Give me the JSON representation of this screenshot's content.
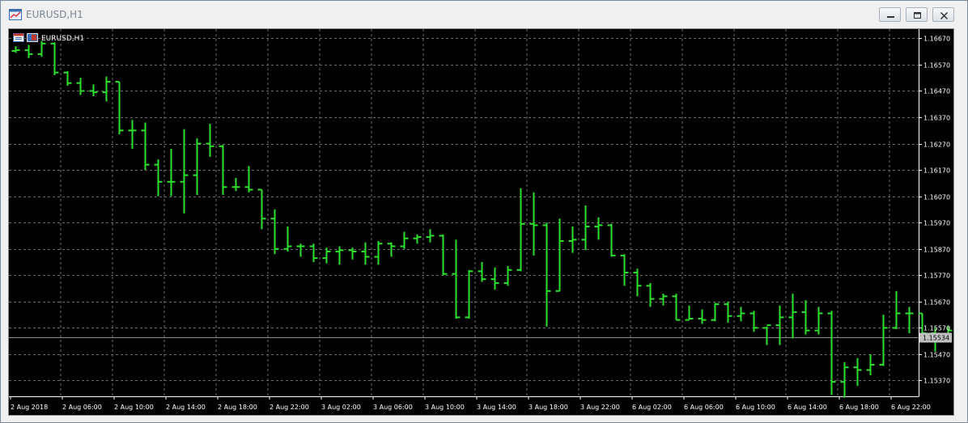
{
  "window": {
    "title": "EURUSD,H1",
    "minimize_icon": "minimize-icon",
    "restore_icon": "restore-icon",
    "close_icon": "close-icon"
  },
  "chart_header": {
    "symbol_label": "EURUSD,H1",
    "icon": "chart-symbol-icon"
  },
  "colors": {
    "background": "#000000",
    "bars": "#2ee02e",
    "grid": "#6b6b6b",
    "axis_text": "#ffffff",
    "current_price_line": "#8c8c8c",
    "current_price_box": "#c0c0c0"
  },
  "chart_data": {
    "type": "ohlc",
    "symbol": "EURUSD",
    "timeframe": "H1",
    "ylim": [
      1.1531,
      1.16705
    ],
    "y_ticks": [
      "1.16670",
      "1.16570",
      "1.16470",
      "1.16370",
      "1.16270",
      "1.16170",
      "1.16070",
      "1.15970",
      "1.15870",
      "1.15770",
      "1.15670",
      "1.15570",
      "1.15470",
      "1.15370"
    ],
    "x_ticks": [
      {
        "bar": 0,
        "label": "2 Aug 2018"
      },
      {
        "bar": 4,
        "label": "2 Aug 06:00"
      },
      {
        "bar": 8,
        "label": "2 Aug 10:00"
      },
      {
        "bar": 12,
        "label": "2 Aug 14:00"
      },
      {
        "bar": 16,
        "label": "2 Aug 18:00"
      },
      {
        "bar": 20,
        "label": "2 Aug 22:00"
      },
      {
        "bar": 24,
        "label": "3 Aug 02:00"
      },
      {
        "bar": 28,
        "label": "3 Aug 06:00"
      },
      {
        "bar": 32,
        "label": "3 Aug 10:00"
      },
      {
        "bar": 36,
        "label": "3 Aug 14:00"
      },
      {
        "bar": 40,
        "label": "3 Aug 18:00"
      },
      {
        "bar": 44,
        "label": "3 Aug 22:00"
      },
      {
        "bar": 48,
        "label": "6 Aug 02:00"
      },
      {
        "bar": 52,
        "label": "6 Aug 06:00"
      },
      {
        "bar": 56,
        "label": "6 Aug 10:00"
      },
      {
        "bar": 60,
        "label": "6 Aug 14:00"
      },
      {
        "bar": 64,
        "label": "6 Aug 18:00"
      },
      {
        "bar": 68,
        "label": "6 Aug 22:00"
      }
    ],
    "current_price": "1.15534",
    "current_price_value": 1.15534,
    "ohlc": [
      [
        1.16622,
        1.1664,
        1.16615,
        1.16625
      ],
      [
        1.16625,
        1.16645,
        1.16595,
        1.1661
      ],
      [
        1.1661,
        1.1666,
        1.166,
        1.1665
      ],
      [
        1.1665,
        1.16655,
        1.1653,
        1.1654
      ],
      [
        1.1654,
        1.16545,
        1.1649,
        1.165
      ],
      [
        1.165,
        1.1652,
        1.16455,
        1.1647
      ],
      [
        1.1647,
        1.16495,
        1.1645,
        1.16465
      ],
      [
        1.16465,
        1.16525,
        1.1643,
        1.16505
      ],
      [
        1.16505,
        1.16505,
        1.16305,
        1.1632
      ],
      [
        1.1632,
        1.1636,
        1.1625,
        1.1632
      ],
      [
        1.1632,
        1.1635,
        1.1617,
        1.1619
      ],
      [
        1.1619,
        1.1621,
        1.1607,
        1.16125
      ],
      [
        1.16125,
        1.1625,
        1.1607,
        1.16125
      ],
      [
        1.16125,
        1.16325,
        1.16005,
        1.1615
      ],
      [
        1.1615,
        1.1629,
        1.16075,
        1.1627
      ],
      [
        1.1627,
        1.16345,
        1.1622,
        1.1626
      ],
      [
        1.1626,
        1.16265,
        1.16075,
        1.16105
      ],
      [
        1.16105,
        1.1614,
        1.1609,
        1.16105
      ],
      [
        1.16105,
        1.16185,
        1.16085,
        1.16095
      ],
      [
        1.16095,
        1.16095,
        1.15945,
        1.15985
      ],
      [
        1.15985,
        1.1602,
        1.1585,
        1.1587
      ],
      [
        1.1587,
        1.15955,
        1.1586,
        1.1588
      ],
      [
        1.1588,
        1.1589,
        1.1584,
        1.1588
      ],
      [
        1.1588,
        1.1589,
        1.1582,
        1.15835
      ],
      [
        1.15835,
        1.15875,
        1.15815,
        1.1586
      ],
      [
        1.1586,
        1.1588,
        1.1581,
        1.15865
      ],
      [
        1.15865,
        1.15875,
        1.1583,
        1.1586
      ],
      [
        1.1586,
        1.15895,
        1.1581,
        1.1584
      ],
      [
        1.1584,
        1.159,
        1.1581,
        1.1589
      ],
      [
        1.1589,
        1.15895,
        1.1584,
        1.1588
      ],
      [
        1.1588,
        1.15935,
        1.1587,
        1.1591
      ],
      [
        1.1591,
        1.15925,
        1.1589,
        1.15915
      ],
      [
        1.15915,
        1.15945,
        1.15895,
        1.1592
      ],
      [
        1.1592,
        1.15925,
        1.1577,
        1.15775
      ],
      [
        1.15775,
        1.15905,
        1.15605,
        1.1561
      ],
      [
        1.1561,
        1.1579,
        1.15605,
        1.15785
      ],
      [
        1.15785,
        1.1582,
        1.15745,
        1.15755
      ],
      [
        1.15755,
        1.158,
        1.15715,
        1.1574
      ],
      [
        1.1574,
        1.15805,
        1.1573,
        1.1579
      ],
      [
        1.1579,
        1.161,
        1.15785,
        1.15965
      ],
      [
        1.15965,
        1.16085,
        1.15845,
        1.1596
      ],
      [
        1.1596,
        1.1597,
        1.15575,
        1.1571
      ],
      [
        1.1571,
        1.15985,
        1.1571,
        1.159
      ],
      [
        1.159,
        1.15955,
        1.15855,
        1.15905
      ],
      [
        1.15905,
        1.16035,
        1.15865,
        1.15955
      ],
      [
        1.15955,
        1.1599,
        1.15905,
        1.1596
      ],
      [
        1.1596,
        1.15965,
        1.1584,
        1.15845
      ],
      [
        1.15845,
        1.1585,
        1.1573,
        1.1578
      ],
      [
        1.1578,
        1.15795,
        1.1569,
        1.1573
      ],
      [
        1.1573,
        1.1574,
        1.1565,
        1.1568
      ],
      [
        1.1568,
        1.157,
        1.15655,
        1.1569
      ],
      [
        1.1569,
        1.157,
        1.156,
        1.156
      ],
      [
        1.156,
        1.15655,
        1.156,
        1.15605
      ],
      [
        1.15605,
        1.1564,
        1.15585,
        1.156
      ],
      [
        1.156,
        1.15665,
        1.15595,
        1.1566
      ],
      [
        1.1566,
        1.1567,
        1.1559,
        1.15615
      ],
      [
        1.15615,
        1.1565,
        1.15595,
        1.15625
      ],
      [
        1.15625,
        1.15635,
        1.15555,
        1.1557
      ],
      [
        1.1557,
        1.15575,
        1.15505,
        1.1558
      ],
      [
        1.1558,
        1.15655,
        1.15505,
        1.1561
      ],
      [
        1.1561,
        1.157,
        1.1553,
        1.1563
      ],
      [
        1.1563,
        1.15675,
        1.15545,
        1.1556
      ],
      [
        1.1556,
        1.1565,
        1.15545,
        1.15625
      ],
      [
        1.15625,
        1.15635,
        1.15315,
        1.15365
      ],
      [
        1.15365,
        1.1544,
        1.15305,
        1.1542
      ],
      [
        1.1542,
        1.15455,
        1.1535,
        1.1541
      ],
      [
        1.1541,
        1.1547,
        1.1539,
        1.1543
      ],
      [
        1.1543,
        1.1562,
        1.15425,
        1.1557
      ],
      [
        1.1557,
        1.1571,
        1.15565,
        1.15625
      ],
      [
        1.15625,
        1.1565,
        1.1555,
        1.15625
      ],
      [
        1.15625,
        1.15625,
        1.15525,
        1.1555
      ],
      [
        1.1555,
        1.1557,
        1.1548,
        1.1554
      ],
      [
        1.1554,
        1.15575,
        1.1553,
        1.1556
      ],
      [
        1.1556,
        1.15565,
        1.15515,
        1.1553
      ],
      [
        1.1553,
        1.15555,
        1.15505,
        1.15534
      ]
    ]
  }
}
